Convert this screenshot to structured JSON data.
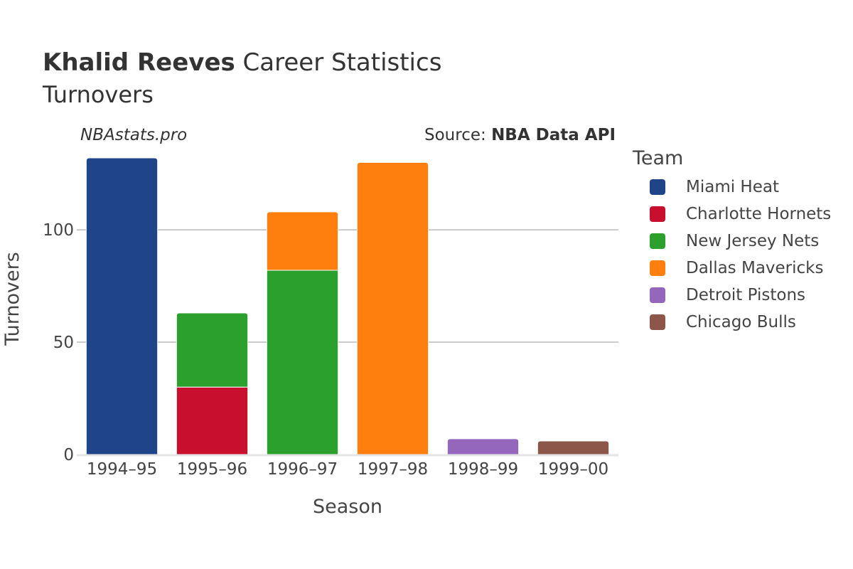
{
  "header": {
    "title_bold": "Khalid Reeves",
    "title_rest": " Career Statistics",
    "subtitle": "Turnovers",
    "watermark": "NBAstats.pro",
    "source_prefix": "Source: ",
    "source_name": "NBA Data API"
  },
  "chart_data": {
    "type": "bar",
    "stacked": true,
    "title": "Khalid Reeves Career Statistics",
    "subtitle": "Turnovers",
    "xlabel": "Season",
    "ylabel": "Turnovers",
    "ylim": [
      0,
      132
    ],
    "yticks": [
      0,
      50,
      100
    ],
    "grid": true,
    "legend_title": "Team",
    "legend_position": "right",
    "categories": [
      "1994–95",
      "1995–96",
      "1996–97",
      "1997–98",
      "1998–99",
      "1999–00"
    ],
    "series": [
      {
        "name": "Miami Heat",
        "color": "#1f4488",
        "values": [
          132,
          0,
          0,
          0,
          0,
          0
        ]
      },
      {
        "name": "Charlotte Hornets",
        "color": "#c8102e",
        "values": [
          0,
          30,
          0,
          0,
          0,
          0
        ]
      },
      {
        "name": "New Jersey Nets",
        "color": "#2ca02c",
        "values": [
          0,
          33,
          82,
          0,
          0,
          0
        ]
      },
      {
        "name": "Dallas Mavericks",
        "color": "#ff7f0e",
        "values": [
          0,
          0,
          26,
          130,
          0,
          0
        ]
      },
      {
        "name": "Detroit Pistons",
        "color": "#9467bd",
        "values": [
          0,
          0,
          0,
          0,
          7,
          0
        ]
      },
      {
        "name": "Chicago Bulls",
        "color": "#8c564b",
        "values": [
          0,
          0,
          0,
          0,
          0,
          6
        ]
      }
    ]
  }
}
